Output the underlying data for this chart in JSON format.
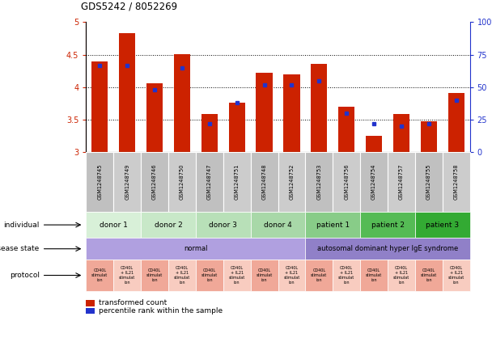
{
  "title": "GDS5242 / 8052269",
  "samples": [
    "GSM1248745",
    "GSM1248749",
    "GSM1248746",
    "GSM1248750",
    "GSM1248747",
    "GSM1248751",
    "GSM1248748",
    "GSM1248752",
    "GSM1248753",
    "GSM1248756",
    "GSM1248754",
    "GSM1248757",
    "GSM1248755",
    "GSM1248758"
  ],
  "red_values": [
    4.4,
    4.83,
    4.06,
    4.51,
    3.59,
    3.76,
    4.22,
    4.2,
    4.36,
    3.7,
    3.25,
    3.59,
    3.47,
    3.91
  ],
  "blue_values": [
    67,
    67,
    48,
    65,
    22,
    38,
    52,
    52,
    55,
    30,
    22,
    20,
    22,
    40
  ],
  "ymin": 3.0,
  "ymax": 5.0,
  "yticks": [
    3.0,
    3.5,
    4.0,
    4.5,
    5.0
  ],
  "right_yticks": [
    0,
    25,
    50,
    75,
    100
  ],
  "bar_color": "#cc2200",
  "dot_color": "#2233cc",
  "tick_color_left": "#cc2200",
  "tick_color_right": "#2233cc",
  "indiv_spans": [
    {
      "label": "donor 1",
      "start": 0,
      "end": 2,
      "color": "#d8f0d8"
    },
    {
      "label": "donor 2",
      "start": 2,
      "end": 4,
      "color": "#c8e8c8"
    },
    {
      "label": "donor 3",
      "start": 4,
      "end": 6,
      "color": "#b8e0b8"
    },
    {
      "label": "donor 4",
      "start": 6,
      "end": 8,
      "color": "#a8d8a8"
    },
    {
      "label": "patient 1",
      "start": 8,
      "end": 10,
      "color": "#88cc88"
    },
    {
      "label": "patient 2",
      "start": 10,
      "end": 12,
      "color": "#55bb55"
    },
    {
      "label": "patient 3",
      "start": 12,
      "end": 14,
      "color": "#33aa33"
    }
  ],
  "disease_spans": [
    {
      "label": "normal",
      "start": 0,
      "end": 8,
      "color": "#b0a0e0"
    },
    {
      "label": "autosomal dominant hyper IgE syndrome",
      "start": 8,
      "end": 14,
      "color": "#9080c8"
    }
  ],
  "proto_colors": [
    "#f0a898",
    "#f8ccc0"
  ],
  "proto_labels": [
    "CD40L\nstimulat\nion",
    "CD40L\n+ IL21\nstimulat\nion"
  ],
  "xtick_bg": "#c8c8c8",
  "legend_red_label": "transformed count",
  "legend_blue_label": "percentile rank within the sample"
}
